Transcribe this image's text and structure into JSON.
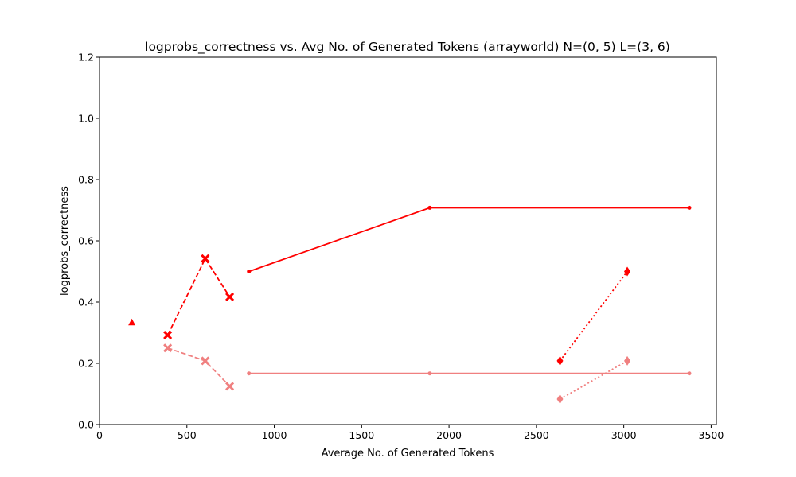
{
  "chart_data": {
    "type": "line",
    "title": "logprobs_correctness vs. Avg No. of Generated Tokens (arrayworld) N=(0, 5) L=(3, 6)",
    "xlabel": "Average No. of Generated Tokens",
    "ylabel": "logprobs_correctness",
    "xlim": [
      0,
      3530
    ],
    "ylim": [
      0,
      1.2
    ],
    "xticks": [
      0,
      500,
      1000,
      1500,
      2000,
      2500,
      3000,
      3500
    ],
    "yticks": [
      0.0,
      0.2,
      0.4,
      0.6,
      0.8,
      1.0,
      1.2
    ],
    "grid": false,
    "series": [
      {
        "color": "#ff0000",
        "linestyle": "none",
        "marker": "triangle",
        "x": [
          185
        ],
        "y": [
          0.333
        ]
      },
      {
        "color": "#ff0000",
        "linestyle": "dashed",
        "marker": "x",
        "x": [
          390,
          605,
          745
        ],
        "y": [
          0.292,
          0.542,
          0.417
        ]
      },
      {
        "color": "#ff0000",
        "linestyle": "solid",
        "marker": "dot",
        "x": [
          855,
          1890,
          3375
        ],
        "y": [
          0.5,
          0.708,
          0.708
        ]
      },
      {
        "color": "#ff0000",
        "linestyle": "dotted",
        "marker": "diamond",
        "x": [
          2635,
          3020
        ],
        "y": [
          0.208,
          0.5
        ]
      },
      {
        "color": "#f08080",
        "linestyle": "dashed",
        "marker": "x",
        "x": [
          390,
          605,
          745
        ],
        "y": [
          0.25,
          0.208,
          0.125
        ]
      },
      {
        "color": "#f08080",
        "linestyle": "solid",
        "marker": "dot",
        "x": [
          855,
          1890,
          3375
        ],
        "y": [
          0.167,
          0.167,
          0.167
        ]
      },
      {
        "color": "#f08080",
        "linestyle": "dotted",
        "marker": "diamond",
        "x": [
          2635,
          3020
        ],
        "y": [
          0.083,
          0.208
        ]
      }
    ]
  }
}
